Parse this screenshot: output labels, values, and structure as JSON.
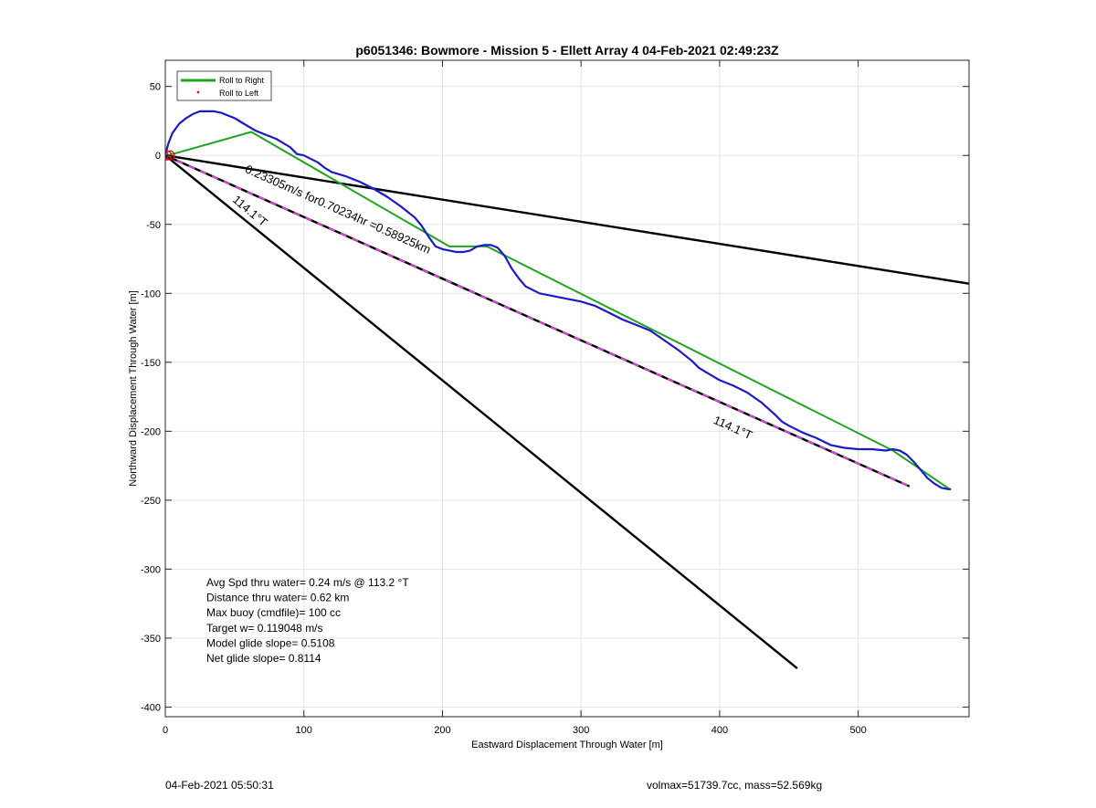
{
  "chart_data": {
    "type": "line",
    "title": "p6051346: Bowmore - Mission 5 - Ellett Array 4 04-Feb-2021 02:49:23Z",
    "xlabel": "Eastward Displacement Through Water [m]",
    "ylabel": "Northward Displacement Through Water [m]",
    "xlim": [
      0,
      580
    ],
    "ylim": [
      -407,
      69
    ],
    "xticks": [
      0,
      100,
      200,
      300,
      400,
      500
    ],
    "yticks": [
      50,
      0,
      -50,
      -100,
      -150,
      -200,
      -250,
      -300,
      -350,
      -400
    ],
    "grid": true,
    "legend": {
      "placement": "top-left",
      "entries": [
        {
          "label": "Roll to Right",
          "color": "#1fa51f"
        },
        {
          "label": "Roll to Left",
          "color": "#e01010"
        }
      ]
    },
    "colors": {
      "track": "#1a1ac8",
      "roll_right": "#1fa51f",
      "roll_left": "#e01010",
      "heading_line": "#000000",
      "mean_line_dash": "#e040e0"
    },
    "series": [
      {
        "role": "track",
        "x": [
          0,
          2,
          5,
          10,
          15,
          20,
          25,
          30,
          35,
          40,
          45,
          50,
          55,
          60,
          65,
          70,
          80,
          90,
          95,
          100,
          110,
          115,
          120,
          130,
          140,
          150,
          160,
          170,
          180,
          185,
          190,
          195,
          200,
          205,
          210,
          215,
          220,
          225,
          230,
          235,
          240,
          245,
          250,
          255,
          260,
          270,
          280,
          290,
          300,
          310,
          320,
          330,
          340,
          350,
          360,
          370,
          380,
          385,
          390,
          395,
          400,
          410,
          420,
          430,
          440,
          445,
          450,
          460,
          470,
          480,
          490,
          500,
          510,
          520,
          525,
          530,
          535,
          540,
          545,
          550,
          555,
          560,
          565,
          567
        ],
        "y": [
          0,
          8,
          16,
          23,
          27,
          30,
          32,
          32,
          32,
          31,
          29,
          27,
          24,
          21,
          18,
          16,
          12,
          6,
          1,
          0,
          -5,
          -9,
          -12,
          -15,
          -19,
          -24,
          -30,
          -37,
          -45,
          -51,
          -59,
          -66,
          -68,
          -69,
          -70,
          -70,
          -69,
          -66,
          -65,
          -65,
          -67,
          -73,
          -82,
          -89,
          -95,
          -100,
          -102,
          -104,
          -106,
          -109,
          -114,
          -119,
          -123,
          -127,
          -134,
          -141,
          -149,
          -154,
          -157,
          -160,
          -163,
          -167,
          -172,
          -179,
          -188,
          -193,
          -196,
          -201,
          -205,
          -210,
          -212,
          -213,
          -213,
          -214,
          -213,
          -214,
          -217,
          -222,
          -228,
          -234,
          -238,
          -241,
          -242,
          -242
        ]
      },
      {
        "role": "roll_right_segments",
        "x": [
          2,
          62,
          205,
          232,
          525,
          566
        ],
        "y": [
          0,
          17,
          -66,
          -66,
          -214,
          -242
        ]
      },
      {
        "role": "heading_lines",
        "lines": [
          {
            "x": [
              0,
              580
            ],
            "y": [
              0,
              -93
            ]
          },
          {
            "x": [
              0,
              537
            ],
            "y": [
              0,
              -240
            ]
          },
          {
            "x": [
              0,
              456
            ],
            "y": [
              0,
              -372
            ]
          }
        ]
      },
      {
        "role": "start_markers",
        "x": [
          0,
          1,
          2
        ],
        "y": [
          0,
          0,
          0
        ]
      }
    ],
    "annotations": [
      {
        "text": "0.23305m/s for0.70234hr =0.58925km",
        "x": 57,
        "y": -12,
        "angle": 24.0
      },
      {
        "text": "114.1°T",
        "x": 48,
        "y": -33,
        "angle": 40.0
      },
      {
        "text": "114.1°T",
        "x": 395,
        "y": -194,
        "angle": 24.0
      }
    ],
    "stats": [
      "Avg Spd thru water=  0.24 m/s @ 113.2 °T",
      "Distance thru water=  0.62 km",
      "Max buoy (cmdfile)= 100 cc",
      "Target w= 0.119048 m/s",
      "Model glide slope= 0.5108",
      "Net glide slope= 0.8114"
    ]
  },
  "footer": {
    "left": "04-Feb-2021 05:50:31",
    "right": "volmax=51739.7cc, mass=52.569kg"
  }
}
